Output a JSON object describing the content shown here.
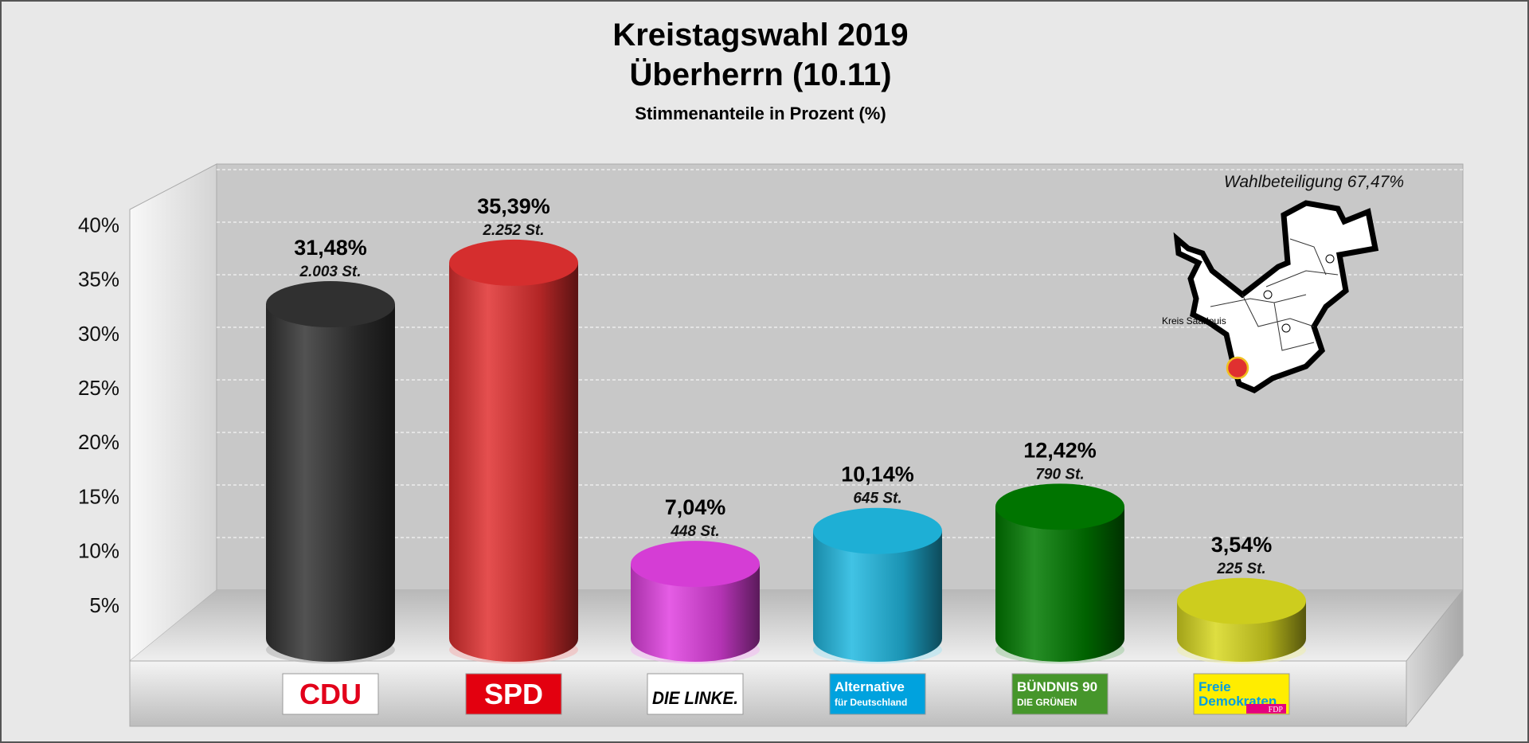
{
  "chart_data": {
    "type": "bar",
    "title": "Kreistagswahl 2019",
    "subtitle_line": "Überherrn (10.11)",
    "subtitle": "Stimmenanteile in Prozent (%)",
    "ylabel": "",
    "xlabel": "",
    "ylim": [
      0,
      40
    ],
    "yticks": [
      5,
      10,
      15,
      20,
      25,
      30,
      35,
      40
    ],
    "ytick_labels": [
      "5%",
      "10%",
      "15%",
      "20%",
      "25%",
      "30%",
      "35%",
      "40%"
    ],
    "grid": true,
    "categories": [
      "CDU",
      "SPD",
      "DIE LINKE",
      "AfD",
      "GRÜNE",
      "FDP"
    ],
    "values": [
      31.48,
      35.39,
      7.04,
      10.14,
      12.42,
      3.54
    ],
    "value_labels": [
      "31,48%",
      "35,39%",
      "7,04%",
      "10,14%",
      "12,42%",
      "3,54%"
    ],
    "votes": [
      2003,
      2252,
      448,
      645,
      790,
      225
    ],
    "vote_labels": [
      "2.003 St.",
      "2.252 St.",
      "448 St.",
      "645 St.",
      "790 St.",
      "225 St."
    ],
    "colors": [
      "#333333",
      "#e03030",
      "#e040e0",
      "#20b8e0",
      "#007a00",
      "#d8d820"
    ],
    "annotation": "Wahlbeteiligung 67,47%",
    "map_label": "Kreis Saarlouis"
  },
  "logos": [
    {
      "text": "CDU",
      "bg": "#ffffff",
      "fg": "#e2001a"
    },
    {
      "text": "SPD",
      "bg": "#e3000f",
      "fg": "#ffffff"
    },
    {
      "text": "DIE LINKE.",
      "bg": "#ffffff",
      "fg": "#000000"
    },
    {
      "text": "Alternative",
      "sub": "für Deutschland",
      "bg": "#00a2de",
      "fg": "#ffffff"
    },
    {
      "text": "BÜNDNIS 90",
      "sub": "DIE GRÜNEN",
      "bg": "#46962b",
      "fg": "#ffffff"
    },
    {
      "text": "Freie",
      "sub": "Demokraten",
      "tag": "FDP",
      "bg": "#ffed00",
      "fg": "#009ee0"
    }
  ]
}
